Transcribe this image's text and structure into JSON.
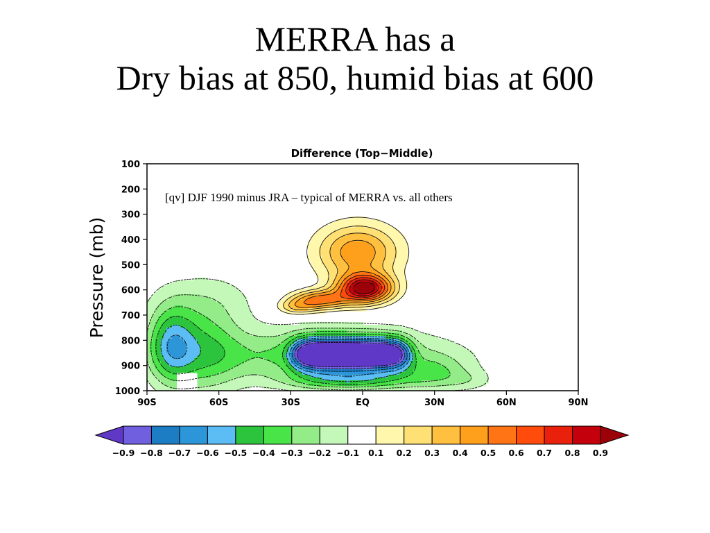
{
  "slide": {
    "title_line1": "MERRA has a",
    "title_line2": "Dry bias at 850, humid bias at 600"
  },
  "chart_data": {
    "type": "contour",
    "title": "Difference (Top−Middle)",
    "annotation": "[qv] DJF 1990 minus JRA – typical of MERRA vs. all others",
    "ylabel": "Pressure (mb)",
    "y_ticks": [
      100,
      200,
      300,
      400,
      500,
      600,
      700,
      800,
      900,
      1000
    ],
    "ylim": [
      1000,
      100
    ],
    "x_ticks": [
      "90S",
      "60S",
      "30S",
      "EQ",
      "30N",
      "60N",
      "90N"
    ],
    "xlim": [
      -90,
      90
    ],
    "colorbar": {
      "ticks": [
        "−0.9",
        "−0.8",
        "−0.7",
        "−0.6",
        "−0.5",
        "−0.4",
        "−0.3",
        "−0.2",
        "−0.1",
        "0.1",
        "0.2",
        "0.3",
        "0.4",
        "0.5",
        "0.6",
        "0.7",
        "0.8",
        "0.9"
      ],
      "levels": [
        -0.9,
        -0.8,
        -0.7,
        -0.6,
        -0.5,
        -0.4,
        -0.3,
        -0.2,
        -0.1,
        0.1,
        0.2,
        0.3,
        0.4,
        0.5,
        0.6,
        0.7,
        0.8,
        0.9
      ],
      "colors": [
        "#7060e0",
        "#1c7cc4",
        "#2c96d8",
        "#5cbcf4",
        "#2cc43c",
        "#48e448",
        "#94ec88",
        "#c4f8b8",
        "#ffffff",
        "#fff8ac",
        "#ffe074",
        "#ffc040",
        "#ffa01c",
        "#ff7414",
        "#ff4c0c",
        "#e8200c",
        "#c4000c"
      ],
      "under_color": "#6038c8",
      "over_color": "#9c0008"
    },
    "features": [
      {
        "name": "humid bias",
        "center_lat": 0,
        "center_p": 600,
        "max_value": 0.9
      },
      {
        "name": "dry bias",
        "center_lat": -5,
        "center_p": 850,
        "min_value": -0.9
      }
    ]
  }
}
